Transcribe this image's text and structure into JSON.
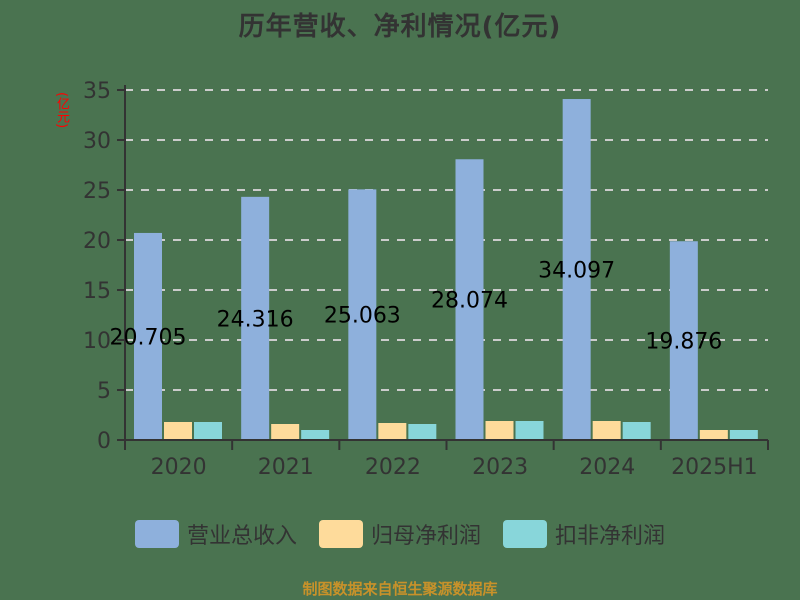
{
  "title": "历年营收、净利情况(亿元)",
  "y_axis_unit": "(亿元)",
  "source_note": "制图数据来自恒生聚源数据库",
  "colors": {
    "revenue": "#8eb0dc",
    "net_profit": "#fedb9b",
    "deducted_net_profit": "#88d6da",
    "grid": "#cccccc",
    "axis": "#333333",
    "ylabel": "#ff0000"
  },
  "legend": [
    {
      "label": "营业总收入",
      "color": "#8eb0dc"
    },
    {
      "label": "归母净利润",
      "color": "#fedb9b"
    },
    {
      "label": "扣非净利润",
      "color": "#88d6da"
    }
  ],
  "chart_data": {
    "type": "bar",
    "title": "历年营收、净利情况(亿元)",
    "xlabel": "",
    "ylabel": "(亿元)",
    "ylim": [
      0,
      35
    ],
    "yticks": [
      0,
      5,
      10,
      15,
      20,
      25,
      30,
      35
    ],
    "grid": true,
    "legend_position": "bottom",
    "categories": [
      "2020",
      "2021",
      "2022",
      "2023",
      "2024",
      "2025H1"
    ],
    "series": [
      {
        "name": "营业总收入",
        "values": [
          20.705,
          24.316,
          25.063,
          28.074,
          34.097,
          19.876
        ],
        "data_labels": [
          "20.705",
          "24.316",
          "25.063",
          "28.074",
          "34.097",
          "19.876"
        ]
      },
      {
        "name": "归母净利润",
        "values": [
          1.8,
          1.6,
          1.7,
          1.9,
          1.9,
          1.0
        ]
      },
      {
        "name": "扣非净利润",
        "values": [
          1.8,
          1.0,
          1.6,
          1.9,
          1.8,
          1.0
        ]
      }
    ]
  }
}
